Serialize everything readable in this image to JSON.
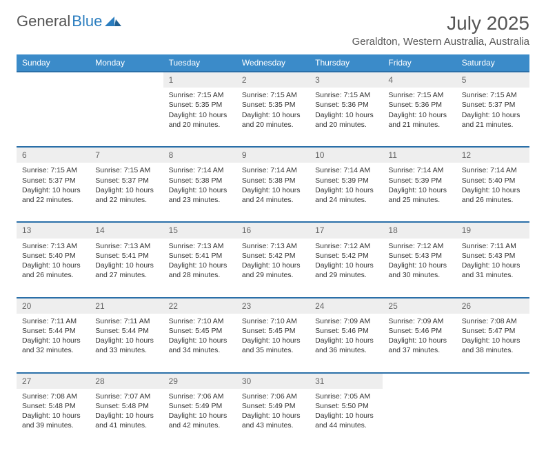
{
  "brand": {
    "part1": "General",
    "part2": "Blue"
  },
  "title": "July 2025",
  "location": "Geraldton, Western Australia, Australia",
  "colors": {
    "header_bg": "#3b8bc9",
    "header_border": "#2a6fa8",
    "daynum_bg": "#eeeeee",
    "text": "#333333",
    "brand_blue": "#2a7dbf"
  },
  "day_headers": [
    "Sunday",
    "Monday",
    "Tuesday",
    "Wednesday",
    "Thursday",
    "Friday",
    "Saturday"
  ],
  "weeks": [
    {
      "nums": [
        "",
        "",
        "1",
        "2",
        "3",
        "4",
        "5"
      ],
      "cells": [
        null,
        null,
        {
          "sunrise": "Sunrise: 7:15 AM",
          "sunset": "Sunset: 5:35 PM",
          "d1": "Daylight: 10 hours",
          "d2": "and 20 minutes."
        },
        {
          "sunrise": "Sunrise: 7:15 AM",
          "sunset": "Sunset: 5:35 PM",
          "d1": "Daylight: 10 hours",
          "d2": "and 20 minutes."
        },
        {
          "sunrise": "Sunrise: 7:15 AM",
          "sunset": "Sunset: 5:36 PM",
          "d1": "Daylight: 10 hours",
          "d2": "and 20 minutes."
        },
        {
          "sunrise": "Sunrise: 7:15 AM",
          "sunset": "Sunset: 5:36 PM",
          "d1": "Daylight: 10 hours",
          "d2": "and 21 minutes."
        },
        {
          "sunrise": "Sunrise: 7:15 AM",
          "sunset": "Sunset: 5:37 PM",
          "d1": "Daylight: 10 hours",
          "d2": "and 21 minutes."
        }
      ]
    },
    {
      "nums": [
        "6",
        "7",
        "8",
        "9",
        "10",
        "11",
        "12"
      ],
      "cells": [
        {
          "sunrise": "Sunrise: 7:15 AM",
          "sunset": "Sunset: 5:37 PM",
          "d1": "Daylight: 10 hours",
          "d2": "and 22 minutes."
        },
        {
          "sunrise": "Sunrise: 7:15 AM",
          "sunset": "Sunset: 5:37 PM",
          "d1": "Daylight: 10 hours",
          "d2": "and 22 minutes."
        },
        {
          "sunrise": "Sunrise: 7:14 AM",
          "sunset": "Sunset: 5:38 PM",
          "d1": "Daylight: 10 hours",
          "d2": "and 23 minutes."
        },
        {
          "sunrise": "Sunrise: 7:14 AM",
          "sunset": "Sunset: 5:38 PM",
          "d1": "Daylight: 10 hours",
          "d2": "and 24 minutes."
        },
        {
          "sunrise": "Sunrise: 7:14 AM",
          "sunset": "Sunset: 5:39 PM",
          "d1": "Daylight: 10 hours",
          "d2": "and 24 minutes."
        },
        {
          "sunrise": "Sunrise: 7:14 AM",
          "sunset": "Sunset: 5:39 PM",
          "d1": "Daylight: 10 hours",
          "d2": "and 25 minutes."
        },
        {
          "sunrise": "Sunrise: 7:14 AM",
          "sunset": "Sunset: 5:40 PM",
          "d1": "Daylight: 10 hours",
          "d2": "and 26 minutes."
        }
      ]
    },
    {
      "nums": [
        "13",
        "14",
        "15",
        "16",
        "17",
        "18",
        "19"
      ],
      "cells": [
        {
          "sunrise": "Sunrise: 7:13 AM",
          "sunset": "Sunset: 5:40 PM",
          "d1": "Daylight: 10 hours",
          "d2": "and 26 minutes."
        },
        {
          "sunrise": "Sunrise: 7:13 AM",
          "sunset": "Sunset: 5:41 PM",
          "d1": "Daylight: 10 hours",
          "d2": "and 27 minutes."
        },
        {
          "sunrise": "Sunrise: 7:13 AM",
          "sunset": "Sunset: 5:41 PM",
          "d1": "Daylight: 10 hours",
          "d2": "and 28 minutes."
        },
        {
          "sunrise": "Sunrise: 7:13 AM",
          "sunset": "Sunset: 5:42 PM",
          "d1": "Daylight: 10 hours",
          "d2": "and 29 minutes."
        },
        {
          "sunrise": "Sunrise: 7:12 AM",
          "sunset": "Sunset: 5:42 PM",
          "d1": "Daylight: 10 hours",
          "d2": "and 29 minutes."
        },
        {
          "sunrise": "Sunrise: 7:12 AM",
          "sunset": "Sunset: 5:43 PM",
          "d1": "Daylight: 10 hours",
          "d2": "and 30 minutes."
        },
        {
          "sunrise": "Sunrise: 7:11 AM",
          "sunset": "Sunset: 5:43 PM",
          "d1": "Daylight: 10 hours",
          "d2": "and 31 minutes."
        }
      ]
    },
    {
      "nums": [
        "20",
        "21",
        "22",
        "23",
        "24",
        "25",
        "26"
      ],
      "cells": [
        {
          "sunrise": "Sunrise: 7:11 AM",
          "sunset": "Sunset: 5:44 PM",
          "d1": "Daylight: 10 hours",
          "d2": "and 32 minutes."
        },
        {
          "sunrise": "Sunrise: 7:11 AM",
          "sunset": "Sunset: 5:44 PM",
          "d1": "Daylight: 10 hours",
          "d2": "and 33 minutes."
        },
        {
          "sunrise": "Sunrise: 7:10 AM",
          "sunset": "Sunset: 5:45 PM",
          "d1": "Daylight: 10 hours",
          "d2": "and 34 minutes."
        },
        {
          "sunrise": "Sunrise: 7:10 AM",
          "sunset": "Sunset: 5:45 PM",
          "d1": "Daylight: 10 hours",
          "d2": "and 35 minutes."
        },
        {
          "sunrise": "Sunrise: 7:09 AM",
          "sunset": "Sunset: 5:46 PM",
          "d1": "Daylight: 10 hours",
          "d2": "and 36 minutes."
        },
        {
          "sunrise": "Sunrise: 7:09 AM",
          "sunset": "Sunset: 5:46 PM",
          "d1": "Daylight: 10 hours",
          "d2": "and 37 minutes."
        },
        {
          "sunrise": "Sunrise: 7:08 AM",
          "sunset": "Sunset: 5:47 PM",
          "d1": "Daylight: 10 hours",
          "d2": "and 38 minutes."
        }
      ]
    },
    {
      "nums": [
        "27",
        "28",
        "29",
        "30",
        "31",
        "",
        ""
      ],
      "cells": [
        {
          "sunrise": "Sunrise: 7:08 AM",
          "sunset": "Sunset: 5:48 PM",
          "d1": "Daylight: 10 hours",
          "d2": "and 39 minutes."
        },
        {
          "sunrise": "Sunrise: 7:07 AM",
          "sunset": "Sunset: 5:48 PM",
          "d1": "Daylight: 10 hours",
          "d2": "and 41 minutes."
        },
        {
          "sunrise": "Sunrise: 7:06 AM",
          "sunset": "Sunset: 5:49 PM",
          "d1": "Daylight: 10 hours",
          "d2": "and 42 minutes."
        },
        {
          "sunrise": "Sunrise: 7:06 AM",
          "sunset": "Sunset: 5:49 PM",
          "d1": "Daylight: 10 hours",
          "d2": "and 43 minutes."
        },
        {
          "sunrise": "Sunrise: 7:05 AM",
          "sunset": "Sunset: 5:50 PM",
          "d1": "Daylight: 10 hours",
          "d2": "and 44 minutes."
        },
        null,
        null
      ]
    }
  ]
}
